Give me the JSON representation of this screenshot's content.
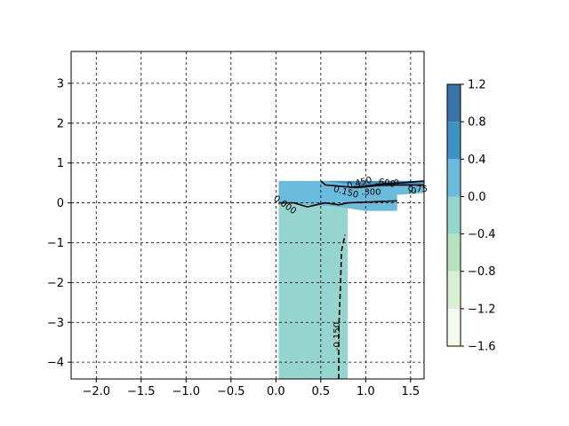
{
  "chart_data": {
    "type": "contour",
    "title": "",
    "xlabel": "",
    "ylabel": "",
    "xlim": [
      -2.28,
      1.65
    ],
    "ylim": [
      -4.42,
      3.8
    ],
    "xticks": [
      {
        "value": -2.0,
        "label": "−2.0"
      },
      {
        "value": -1.5,
        "label": "−1.5"
      },
      {
        "value": -1.0,
        "label": "−1.0"
      },
      {
        "value": -0.5,
        "label": "−0.5"
      },
      {
        "value": 0.0,
        "label": "0.0"
      },
      {
        "value": 0.5,
        "label": "0.5"
      },
      {
        "value": 1.0,
        "label": "1.0"
      },
      {
        "value": 1.5,
        "label": "1.5"
      }
    ],
    "yticks": [
      {
        "value": -4,
        "label": "−4"
      },
      {
        "value": -3,
        "label": "−3"
      },
      {
        "value": -2,
        "label": "−2"
      },
      {
        "value": -1,
        "label": "−1"
      },
      {
        "value": 0,
        "label": "0"
      },
      {
        "value": 1,
        "label": "1"
      },
      {
        "value": 2,
        "label": "2"
      },
      {
        "value": 3,
        "label": "3"
      }
    ],
    "grid": true,
    "grid_style": "dashed",
    "filled_regions": [
      {
        "level_band": [
          -0.4,
          0.0
        ],
        "color": "#96d5cd",
        "polygon": [
          [
            0.03,
            -4.42
          ],
          [
            0.8,
            -4.42
          ],
          [
            0.8,
            0.0
          ],
          [
            0.7,
            -0.1
          ],
          [
            0.03,
            0.0
          ]
        ]
      },
      {
        "level_band": [
          0.0,
          0.4
        ],
        "color": "#6bbcdc",
        "polygon": [
          [
            0.03,
            0.0
          ],
          [
            0.7,
            -0.1
          ],
          [
            1.0,
            -0.2
          ],
          [
            1.35,
            -0.2
          ],
          [
            1.35,
            0.2
          ],
          [
            1.65,
            0.25
          ],
          [
            1.65,
            0.55
          ],
          [
            0.03,
            0.55
          ]
        ]
      },
      {
        "level_band": [
          0.4,
          0.8
        ],
        "color": "#3f93c3",
        "polygon": [
          [
            0.55,
            0.55
          ],
          [
            0.9,
            0.45
          ],
          [
            1.2,
            0.4
          ],
          [
            1.4,
            0.45
          ],
          [
            1.65,
            0.5
          ],
          [
            1.65,
            0.55
          ]
        ]
      }
    ],
    "contour_lines": [
      {
        "level": "0.000",
        "style": "solid",
        "points": [
          [
            0.03,
            0.0
          ],
          [
            0.2,
            0.0
          ],
          [
            0.35,
            -0.1
          ],
          [
            0.45,
            -0.05
          ],
          [
            0.55,
            0.0
          ],
          [
            0.7,
            -0.05
          ],
          [
            0.8,
            0.0
          ],
          [
            1.35,
            0.05
          ]
        ]
      },
      {
        "level": "-0.150",
        "style": "dashed",
        "points": [
          [
            0.7,
            -4.42
          ],
          [
            0.7,
            -3.2
          ],
          [
            0.72,
            -2.0
          ],
          [
            0.73,
            -1.2
          ],
          [
            0.77,
            -0.8
          ]
        ]
      },
      {
        "level": "0.150",
        "style": "solid",
        "points": [
          [
            0.5,
            0.55
          ],
          [
            0.55,
            0.45
          ],
          [
            0.7,
            0.42
          ],
          [
            0.9,
            0.38
          ],
          [
            1.2,
            0.45
          ],
          [
            1.45,
            0.45
          ],
          [
            1.65,
            0.45
          ]
        ]
      },
      {
        "level": "0.300",
        "style": "solid",
        "points": [
          [
            0.85,
            0.4
          ],
          [
            1.0,
            0.42
          ],
          [
            1.2,
            0.48
          ],
          [
            1.4,
            0.5
          ],
          [
            1.65,
            0.55
          ]
        ]
      }
    ],
    "contour_labels": [
      {
        "text": "0.000",
        "x": 0.1,
        "y": -0.05,
        "angle": 35
      },
      {
        "text": "-0.150",
        "x": 0.68,
        "y": -3.35,
        "angle": -90
      },
      {
        "text": "0.150",
        "x": 0.78,
        "y": 0.27,
        "angle": 15
      },
      {
        "text": ".300",
        "x": 1.06,
        "y": 0.27,
        "angle": 0
      },
      {
        "text": "0.450",
        "x": 0.93,
        "y": 0.5,
        "angle": -15
      },
      {
        "text": ".600",
        "x": 1.22,
        "y": 0.5,
        "angle": 10
      },
      {
        "text": "0",
        "x": 1.34,
        "y": 0.5,
        "angle": 0
      },
      {
        "text": ".0",
        "x": 1.52,
        "y": 0.3,
        "angle": 0
      },
      {
        "text": "0.75",
        "x": 1.58,
        "y": 0.35,
        "angle": 0
      }
    ],
    "colorbar": {
      "levels": [
        -1.6,
        -1.2,
        -0.8,
        -0.4,
        0.0,
        0.4,
        0.8,
        1.2
      ],
      "tick_labels": [
        "−1.6",
        "−1.2",
        "−0.8",
        "−0.4",
        "0.0",
        "0.4",
        "0.8",
        "1.2"
      ],
      "colors": [
        "#f3fbee",
        "#d9f0d3",
        "#b7e2bf",
        "#96d5cd",
        "#6bbcdc",
        "#3f93c3",
        "#3a73a8"
      ]
    }
  }
}
